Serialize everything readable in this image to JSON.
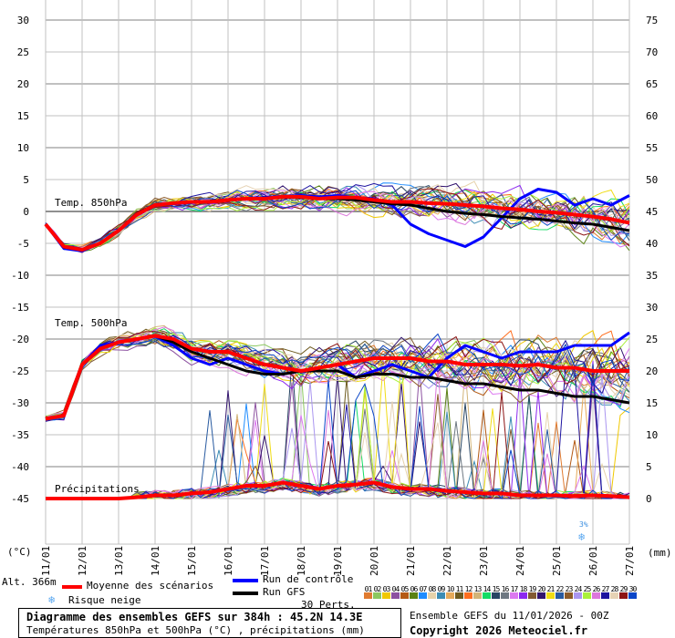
{
  "chart_data": {
    "type": "line",
    "title": "Diagramme des ensembles GEFS sur 384h : 45.2N 14.3E",
    "subtitle": "Températures 850hPa et 500hPa (°C) , précipitations (mm)",
    "run_info": "Ensemble GEFS du 11/01/2026 - 00Z",
    "copyright": "Copyright 2026 Meteociel.fr",
    "altitude": "Alt. 366m",
    "left_unit": "(°C)",
    "right_unit": "(mm)",
    "left_ticks": [
      "30",
      "25",
      "20",
      "15",
      "10",
      "5",
      "0",
      "-5",
      "-10",
      "-15",
      "-20",
      "-25",
      "-30",
      "-35",
      "-40",
      "-45"
    ],
    "right_ticks": [
      "75",
      "70",
      "65",
      "60",
      "55",
      "50",
      "45",
      "40",
      "35",
      "30",
      "25",
      "20",
      "15",
      "10",
      "5",
      "0"
    ],
    "left_range": [
      -45,
      30
    ],
    "right_range": [
      0,
      75
    ],
    "x_labels": [
      "11/01",
      "12/01",
      "13/01",
      "14/01",
      "15/01",
      "16/01",
      "17/01",
      "18/01",
      "19/01",
      "20/01",
      "21/01",
      "22/01",
      "23/01",
      "24/01",
      "25/01",
      "26/01",
      "27/01"
    ],
    "x_hours_step": 12,
    "annotations": {
      "t850": "Temp. 850hPa",
      "t500": "Temp. 500hPa",
      "precip": "Précipitations",
      "snow_risk": "3%"
    },
    "series": [
      {
        "name": "Moyenne des scénarios",
        "group": "t850",
        "color": "#ff0000",
        "values": [
          -2,
          -5.5,
          -6,
          -5,
          -3,
          -0.5,
          1,
          1.3,
          1.5,
          1.5,
          1.8,
          2,
          2,
          2.3,
          2.3,
          2,
          2.2,
          2.2,
          1.8,
          1.5,
          1.5,
          1.3,
          1.2,
          1,
          0.8,
          0.5,
          0.3,
          0,
          -0.2,
          -0.5,
          -0.8,
          -1.2,
          -1.8
        ]
      },
      {
        "name": "Run de contrôle",
        "group": "t850",
        "color": "#0000ff",
        "values": [
          -2,
          -5.8,
          -6.2,
          -5,
          -3,
          -0.5,
          1,
          1.2,
          1.4,
          1.5,
          1.8,
          2,
          2.2,
          2.4,
          2.5,
          2.3,
          2.5,
          2.2,
          2,
          1,
          -2,
          -3.5,
          -4.5,
          -5.5,
          -4,
          -1,
          2,
          3.5,
          3,
          1,
          2,
          1,
          2.5
        ]
      },
      {
        "name": "Run GFS",
        "group": "t850",
        "color": "#000000",
        "values": [
          -2,
          -5.6,
          -6,
          -5,
          -3,
          -0.4,
          1.1,
          1.3,
          1.5,
          1.6,
          1.8,
          2,
          2.1,
          2.2,
          2.2,
          2,
          2,
          1.8,
          1.5,
          1.2,
          1,
          0.5,
          0,
          -0.3,
          -0.5,
          -0.8,
          -1,
          -1.2,
          -1.5,
          -1.8,
          -2,
          -2.5,
          -3
        ]
      },
      {
        "name": "Moyenne des scénarios",
        "group": "t500",
        "color": "#ff0000",
        "values": [
          -32.5,
          -32,
          -24,
          -21.5,
          -20.5,
          -20,
          -19.5,
          -20,
          -21.5,
          -22,
          -22,
          -23,
          -24,
          -24.5,
          -25,
          -24.5,
          -24,
          -23.5,
          -23,
          -23,
          -23,
          -23.5,
          -23.5,
          -24,
          -24,
          -24,
          -24.2,
          -24,
          -24.5,
          -24.5,
          -25,
          -25,
          -25
        ]
      },
      {
        "name": "Run de contrôle",
        "group": "t500",
        "color": "#0000ff",
        "values": [
          -32.5,
          -32,
          -24,
          -21,
          -20.5,
          -20,
          -19.5,
          -21,
          -23,
          -24,
          -23,
          -24,
          -25,
          -25.5,
          -25,
          -24.5,
          -24,
          -26,
          -25,
          -24,
          -25,
          -26,
          -23,
          -21,
          -22,
          -23,
          -22,
          -22,
          -22,
          -21,
          -21,
          -21,
          -19
        ]
      },
      {
        "name": "Run GFS",
        "group": "t500",
        "color": "#000000",
        "values": [
          -32.5,
          -32,
          -24,
          -21.5,
          -20.5,
          -20,
          -19.5,
          -20.5,
          -22,
          -23,
          -24,
          -25,
          -25.5,
          -25.5,
          -25,
          -25,
          -25,
          -26,
          -25.5,
          -25.5,
          -26,
          -26,
          -26.5,
          -27,
          -27,
          -27.5,
          -28,
          -28,
          -28.5,
          -29,
          -29,
          -29.5,
          -30
        ]
      },
      {
        "name": "Moyenne des scénarios",
        "group": "precip",
        "color": "#ff0000",
        "values": [
          0,
          0,
          0,
          0,
          0,
          0.2,
          0.5,
          0.5,
          0.8,
          1,
          1.5,
          2,
          2,
          2.5,
          2,
          1.5,
          2,
          2.2,
          2.5,
          1.8,
          1.5,
          1.5,
          1.2,
          1,
          0.8,
          0.8,
          0.5,
          0.5,
          0.5,
          0.4,
          0.5,
          0.4,
          0.2
        ]
      }
    ],
    "perturbations": 30
  },
  "legend": {
    "mean": "Moyenne des scénarios",
    "control": "Run de contrôle",
    "gfs": "Run GFS",
    "snow": "Risque neige",
    "perts": "30 Perts.",
    "pert_ids": [
      "01",
      "02",
      "03",
      "04",
      "05",
      "06",
      "07",
      "08",
      "09",
      "10",
      "11",
      "12",
      "13",
      "14",
      "15",
      "16",
      "17",
      "18",
      "19",
      "20",
      "21",
      "22",
      "23",
      "24",
      "25",
      "26",
      "27",
      "28",
      "29",
      "30"
    ],
    "pert_colors": [
      "#e07b30",
      "#8cc860",
      "#f0c800",
      "#8c50a0",
      "#b45a14",
      "#5a8214",
      "#1e8cff",
      "#e6d2aa",
      "#3c8cb4",
      "#e6aa5a",
      "#6e5a1e",
      "#ff6e1e",
      "#d2b478",
      "#14dc64",
      "#284664",
      "#6e7882",
      "#dc78f0",
      "#8c28f0",
      "#825a32",
      "#32146e",
      "#f0dc14",
      "#285aa0",
      "#8c5a28",
      "#aa96f0",
      "#aaf03c",
      "#dc78dc",
      "#1e14a0",
      "#e6d2b4",
      "#8c1414",
      "#0a46c8"
    ]
  }
}
